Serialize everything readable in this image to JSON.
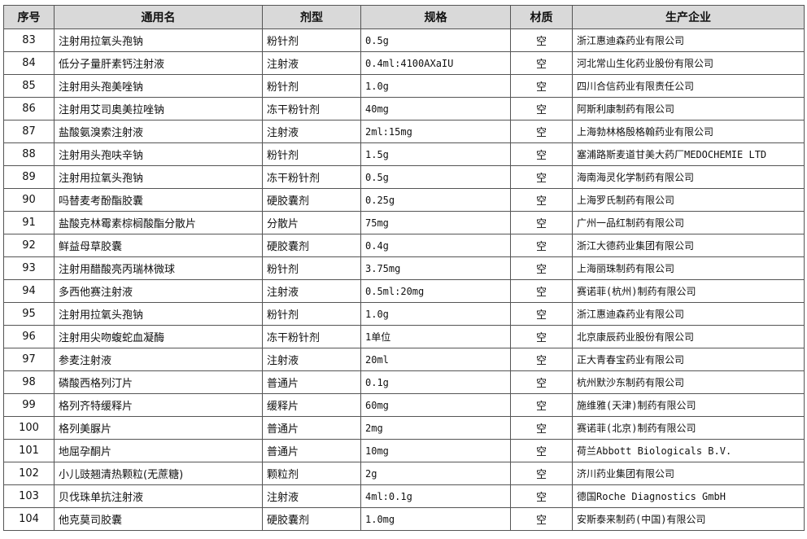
{
  "table": {
    "header": [
      "序号",
      "通用名",
      "剂型",
      "规格",
      "材质",
      "生产企业"
    ],
    "rows": [
      [
        "83",
        "注射用拉氧头孢钠",
        "粉针剂",
        "0.5g",
        "空",
        "浙江惠迪森药业有限公司"
      ],
      [
        "84",
        "低分子量肝素钙注射液",
        "注射液",
        "0.4ml:4100AXaIU",
        "空",
        "河北常山生化药业股份有限公司"
      ],
      [
        "85",
        "注射用头孢美唑钠",
        "粉针剂",
        "1.0g",
        "空",
        "四川合信药业有限责任公司"
      ],
      [
        "86",
        "注射用艾司奥美拉唑钠",
        "冻干粉针剂",
        "40mg",
        "空",
        "阿斯利康制药有限公司"
      ],
      [
        "87",
        "盐酸氨溴索注射液",
        "注射液",
        "2ml:15mg",
        "空",
        "上海勃林格殷格翰药业有限公司"
      ],
      [
        "88",
        "注射用头孢呋辛钠",
        "粉针剂",
        "1.5g",
        "空",
        "塞浦路斯麦道甘美大药厂MEDOCHEMIE LTD"
      ],
      [
        "89",
        "注射用拉氧头孢钠",
        "冻干粉针剂",
        "0.5g",
        "空",
        "海南海灵化学制药有限公司"
      ],
      [
        "90",
        "吗替麦考酚酯胶囊",
        "硬胶囊剂",
        "0.25g",
        "空",
        "上海罗氏制药有限公司"
      ],
      [
        "91",
        "盐酸克林霉素棕榈酸酯分散片",
        "分散片",
        "75mg",
        "空",
        "广州一品红制药有限公司"
      ],
      [
        "92",
        "鲜益母草胶囊",
        "硬胶囊剂",
        "0.4g",
        "空",
        "浙江大德药业集团有限公司"
      ],
      [
        "93",
        "注射用醋酸亮丙瑞林微球",
        "粉针剂",
        "3.75mg",
        "空",
        "上海丽珠制药有限公司"
      ],
      [
        "94",
        "多西他赛注射液",
        "注射液",
        "0.5ml:20mg",
        "空",
        "赛诺菲(杭州)制药有限公司"
      ],
      [
        "95",
        "注射用拉氧头孢钠",
        "粉针剂",
        "1.0g",
        "空",
        "浙江惠迪森药业有限公司"
      ],
      [
        "96",
        "注射用尖吻蝮蛇血凝酶",
        "冻干粉针剂",
        "1单位",
        "空",
        "北京康辰药业股份有限公司"
      ],
      [
        "97",
        "参麦注射液",
        "注射液",
        "20ml",
        "空",
        "正大青春宝药业有限公司"
      ],
      [
        "98",
        "磷酸西格列汀片",
        "普通片",
        "0.1g",
        "空",
        "杭州默沙东制药有限公司"
      ],
      [
        "99",
        "格列齐特缓释片",
        "缓释片",
        "60mg",
        "空",
        "施维雅(天津)制药有限公司"
      ],
      [
        "100",
        "格列美脲片",
        "普通片",
        "2mg",
        "空",
        "赛诺菲(北京)制药有限公司"
      ],
      [
        "101",
        "地屈孕酮片",
        "普通片",
        "10mg",
        "空",
        "荷兰Abbott Biologicals B.V."
      ],
      [
        "102",
        "小儿豉翘清热颗粒(无蔗糖)",
        "颗粒剂",
        "2g",
        "空",
        "济川药业集团有限公司"
      ],
      [
        "103",
        "贝伐珠单抗注射液",
        "注射液",
        "4ml:0.1g",
        "空",
        "德国Roche Diagnostics GmbH"
      ],
      [
        "104",
        "他克莫司胶囊",
        "硬胶囊剂",
        "1.0mg",
        "空",
        "安斯泰来制药(中国)有限公司"
      ]
    ]
  }
}
